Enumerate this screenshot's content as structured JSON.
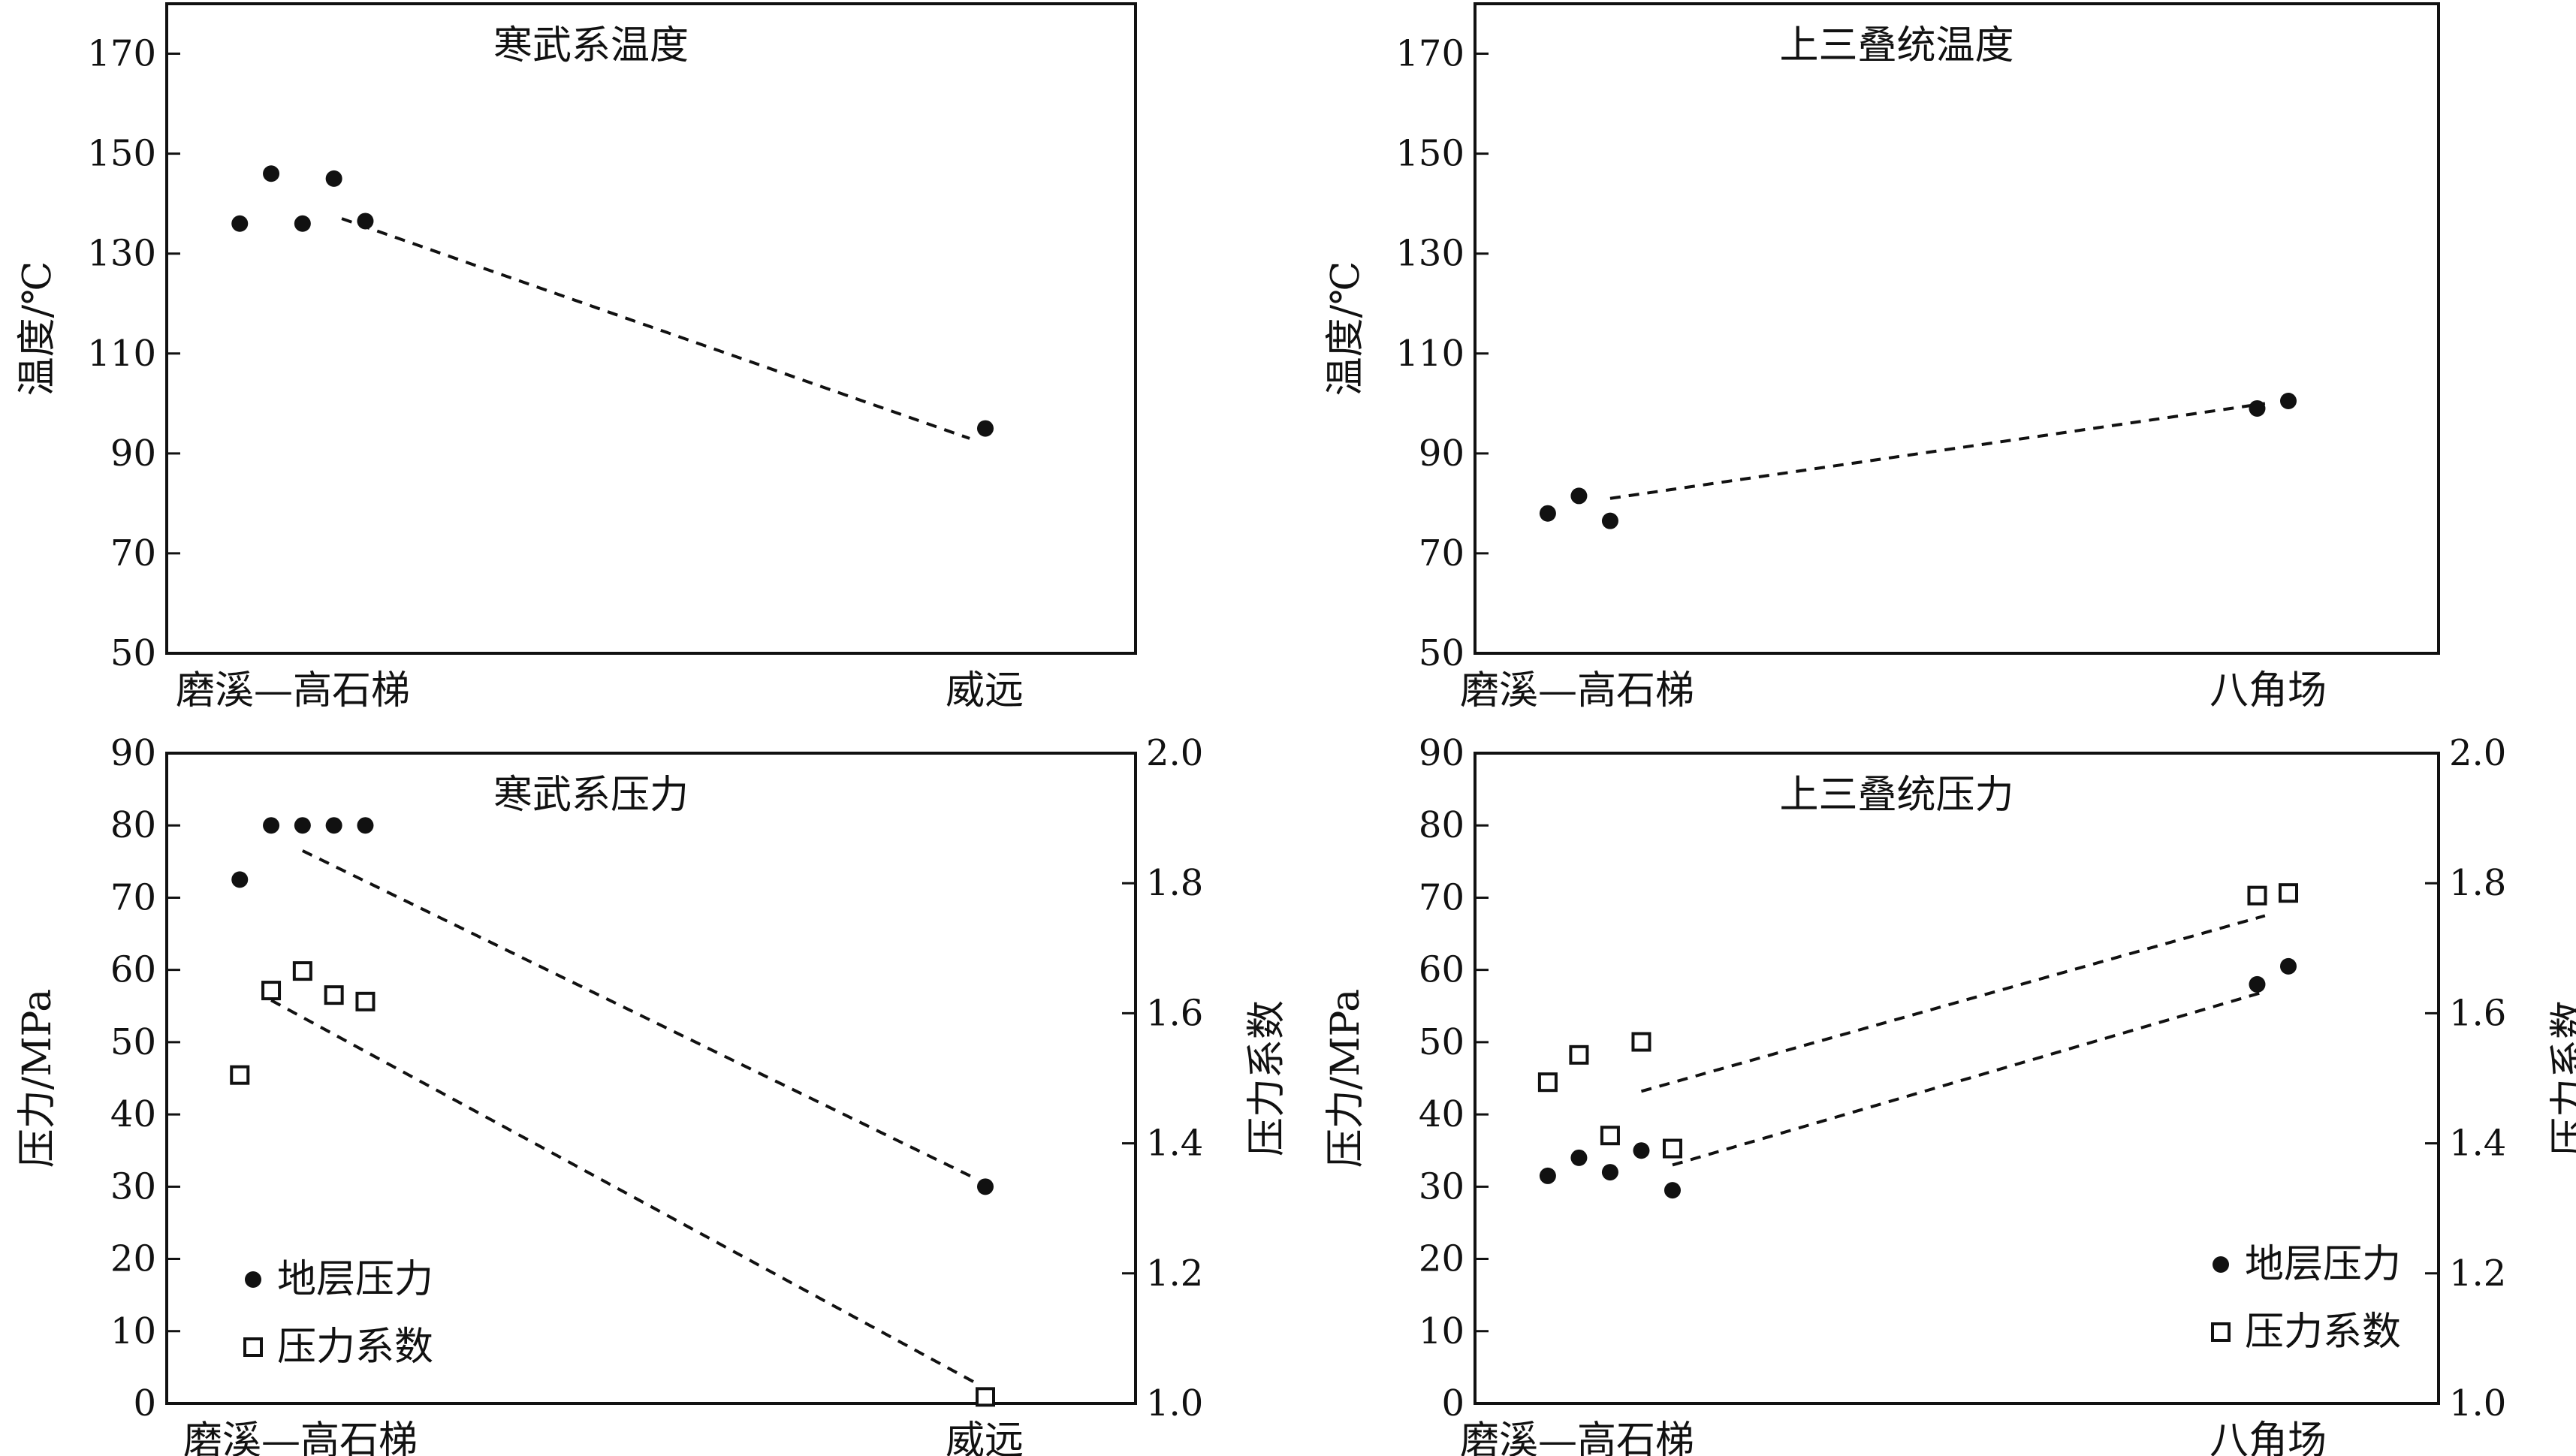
{
  "chart_data": [
    {
      "type": "scatter",
      "title": "寒武系温度",
      "ylabel": "温度/℃",
      "ylim": [
        50,
        180
      ],
      "yticks": [
        50,
        70,
        90,
        110,
        130,
        150,
        170
      ],
      "categories": [
        "磨溪—高石梯",
        "威远"
      ],
      "grid": false,
      "series": [
        {
          "marker": "dot",
          "points": [
            {
              "x": 0.05,
              "y": 136
            },
            {
              "x": 0.09,
              "y": 146
            },
            {
              "x": 0.13,
              "y": 136
            },
            {
              "x": 0.17,
              "y": 145
            },
            {
              "x": 0.21,
              "y": 136.5
            },
            {
              "x": 1.0,
              "y": 95
            }
          ]
        }
      ],
      "trendlines": [
        {
          "from": {
            "x": 0.18,
            "y": 137
          },
          "to": {
            "x": 0.98,
            "y": 93
          }
        }
      ]
    },
    {
      "type": "scatter",
      "title": "上三叠统温度",
      "ylabel": "温度/℃",
      "ylim": [
        50,
        180
      ],
      "yticks": [
        50,
        70,
        90,
        110,
        130,
        150,
        170
      ],
      "categories": [
        "磨溪—高石梯",
        "八角场"
      ],
      "grid": false,
      "series": [
        {
          "marker": "dot",
          "points": [
            {
              "x": 0.05,
              "y": 78
            },
            {
              "x": 0.09,
              "y": 81.5
            },
            {
              "x": 0.13,
              "y": 76.5
            },
            {
              "x": 0.96,
              "y": 99
            },
            {
              "x": 1.0,
              "y": 100.5
            }
          ]
        }
      ],
      "trendlines": [
        {
          "from": {
            "x": 0.13,
            "y": 81
          },
          "to": {
            "x": 0.97,
            "y": 100
          }
        }
      ]
    },
    {
      "type": "scatter",
      "title": "寒武系压力",
      "ylabel": "压力/MPa",
      "ylabel_right": "压力系数",
      "ylim": [
        0,
        90
      ],
      "yticks": [
        0,
        10,
        20,
        30,
        40,
        50,
        60,
        70,
        80,
        90
      ],
      "ylim_right": [
        1.0,
        2.0
      ],
      "yticks_right": [
        "1.0",
        "1.2",
        "1.4",
        "1.6",
        "1.8",
        "2.0"
      ],
      "categories": [
        "磨溪—高石梯",
        "威远"
      ],
      "grid": false,
      "legend_position": "bottom-left",
      "series": [
        {
          "name": "地层压力",
          "marker": "dot",
          "axis": "left",
          "points": [
            {
              "x": 0.05,
              "y": 72.5
            },
            {
              "x": 0.09,
              "y": 80
            },
            {
              "x": 0.13,
              "y": 80
            },
            {
              "x": 0.17,
              "y": 80
            },
            {
              "x": 0.21,
              "y": 80
            },
            {
              "x": 1.0,
              "y": 30
            }
          ]
        },
        {
          "name": "压力系数",
          "marker": "square",
          "axis": "right",
          "points": [
            {
              "x": 0.05,
              "y": 1.505
            },
            {
              "x": 0.09,
              "y": 1.635
            },
            {
              "x": 0.13,
              "y": 1.665
            },
            {
              "x": 0.17,
              "y": 1.628
            },
            {
              "x": 0.21,
              "y": 1.618
            },
            {
              "x": 1.0,
              "y": 1.01
            }
          ]
        }
      ],
      "trendlines": [
        {
          "axis": "left",
          "from": {
            "x": 0.13,
            "y": 76.5
          },
          "to": {
            "x": 0.99,
            "y": 31
          }
        },
        {
          "axis": "right",
          "from": {
            "x": 0.09,
            "y": 1.62
          },
          "to": {
            "x": 0.99,
            "y": 1.03
          }
        }
      ]
    },
    {
      "type": "scatter",
      "title": "上三叠统压力",
      "ylabel": "压力/MPa",
      "ylabel_right": "压力系数",
      "ylim": [
        0,
        90
      ],
      "yticks": [
        0,
        10,
        20,
        30,
        40,
        50,
        60,
        70,
        80,
        90
      ],
      "ylim_right": [
        1.0,
        2.0
      ],
      "yticks_right": [
        "1.0",
        "1.2",
        "1.4",
        "1.6",
        "1.8",
        "2.0"
      ],
      "categories": [
        "磨溪—高石梯",
        "八角场"
      ],
      "grid": false,
      "legend_position": "bottom-right",
      "series": [
        {
          "name": "地层压力",
          "marker": "dot",
          "axis": "left",
          "points": [
            {
              "x": 0.05,
              "y": 31.5
            },
            {
              "x": 0.09,
              "y": 34
            },
            {
              "x": 0.13,
              "y": 32
            },
            {
              "x": 0.17,
              "y": 35
            },
            {
              "x": 0.21,
              "y": 29.5
            },
            {
              "x": 0.96,
              "y": 58
            },
            {
              "x": 1.0,
              "y": 60.5
            }
          ]
        },
        {
          "name": "压力系数",
          "marker": "square",
          "axis": "right",
          "points": [
            {
              "x": 0.05,
              "y": 1.494
            },
            {
              "x": 0.09,
              "y": 1.536
            },
            {
              "x": 0.13,
              "y": 1.412
            },
            {
              "x": 0.17,
              "y": 1.556
            },
            {
              "x": 0.21,
              "y": 1.392
            },
            {
              "x": 0.96,
              "y": 1.781
            },
            {
              "x": 1.0,
              "y": 1.785
            }
          ]
        }
      ],
      "trendlines": [
        {
          "axis": "left",
          "from": {
            "x": 0.21,
            "y": 33
          },
          "to": {
            "x": 0.97,
            "y": 57
          }
        },
        {
          "axis": "right",
          "from": {
            "x": 0.17,
            "y": 1.48
          },
          "to": {
            "x": 0.97,
            "y": 1.75
          }
        }
      ]
    }
  ]
}
